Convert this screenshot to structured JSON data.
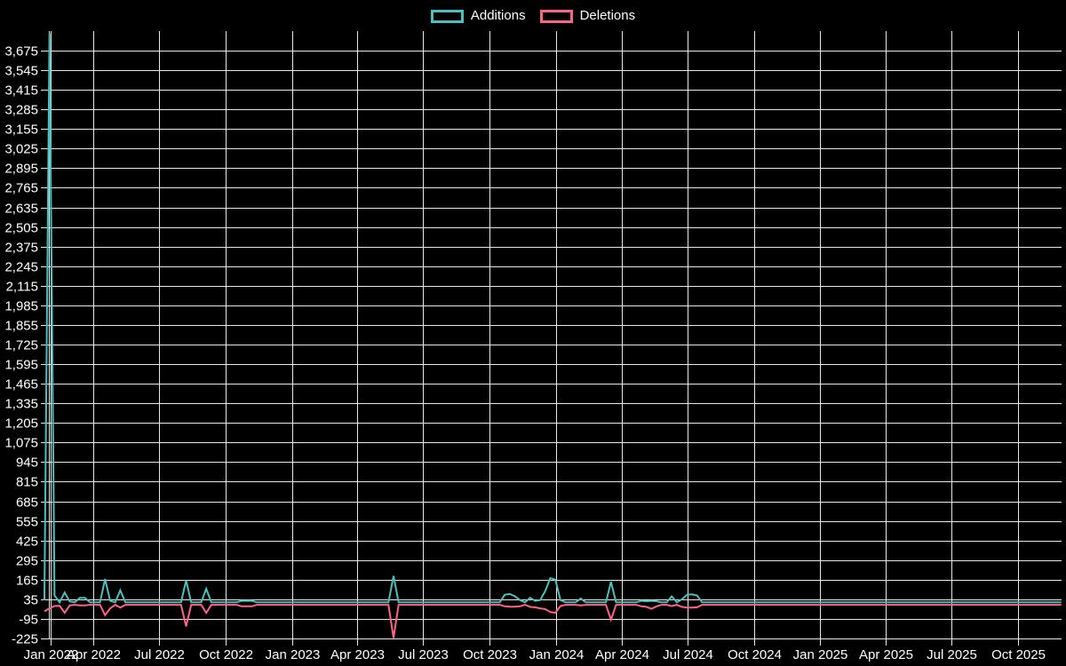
{
  "page": {
    "background_color": "#000000",
    "text_color": "#ffffff",
    "grid_color": "#e8e8e8"
  },
  "legend": {
    "position": "top-center",
    "items": [
      {
        "label": "Additions",
        "color": "#4bc0c0"
      },
      {
        "label": "Deletions",
        "color": "#ff6384"
      }
    ]
  },
  "chart_data": {
    "type": "line",
    "title": "",
    "xlabel": "",
    "ylabel": "",
    "legend_position": "top",
    "grid": true,
    "series": [
      {
        "name": "Additions",
        "color": "#4bc0c0"
      },
      {
        "name": "Deletions",
        "color": "#ff6384"
      }
    ],
    "y_axis": {
      "min": -225,
      "max": 3805,
      "tick_step": 130,
      "tick_labels": [
        "3,675",
        "3,545",
        "3,415",
        "3,285",
        "3,155",
        "3,025",
        "2,895",
        "2,765",
        "2,635",
        "2,505",
        "2,375",
        "2,245",
        "2,115",
        "1,985",
        "1,855",
        "1,725",
        "1,595",
        "1,465",
        "1,335",
        "1,205",
        "1,075",
        "945",
        "815",
        "685",
        "555",
        "425",
        "295",
        "165",
        "35",
        "-95",
        "-225"
      ]
    },
    "x_axis": {
      "interval": "weekly",
      "start_date": "2022-01-23",
      "weeks_total": 202,
      "ticks": [
        {
          "label": "Jan 2022",
          "date": "2022-01-01"
        },
        {
          "label": "Apr 2022",
          "date": "2022-04-01"
        },
        {
          "label": "Jul 2022",
          "date": "2022-07-01"
        },
        {
          "label": "Oct 2022",
          "date": "2022-10-01"
        },
        {
          "label": "Jan 2023",
          "date": "2023-01-01"
        },
        {
          "label": "Apr 2023",
          "date": "2023-04-01"
        },
        {
          "label": "Jul 2023",
          "date": "2023-07-01"
        },
        {
          "label": "Oct 2023",
          "date": "2023-10-01"
        },
        {
          "label": "Jan 2024",
          "date": "2024-01-01"
        },
        {
          "label": "Apr 2024",
          "date": "2024-04-01"
        },
        {
          "label": "Jul 2024",
          "date": "2024-07-01"
        },
        {
          "label": "Oct 2024",
          "date": "2024-10-01"
        },
        {
          "label": "Jan 2025",
          "date": "2025-01-01"
        },
        {
          "label": "Apr 2025",
          "date": "2025-04-01"
        },
        {
          "label": "Jul 2025",
          "date": "2025-07-01"
        },
        {
          "label": "Oct 2025",
          "date": "2025-10-01"
        }
      ]
    },
    "baseline": {
      "additions": 15,
      "deletions": -2
    },
    "feature_weeks": {
      "0": [
        30,
        -45
      ],
      "1": [
        3787,
        -25
      ],
      "2": [
        60,
        -10
      ],
      "3": [
        15,
        -8
      ],
      "4": [
        80,
        -55
      ],
      "5": [
        20,
        -5
      ],
      "7": [
        45,
        -5
      ],
      "8": [
        45,
        -5
      ],
      "12": [
        170,
        -70
      ],
      "13": [
        25,
        -25
      ],
      "15": [
        95,
        -20
      ],
      "28": [
        160,
        -145
      ],
      "32": [
        105,
        -55
      ],
      "39": [
        25,
        -12
      ],
      "40": [
        25,
        -12
      ],
      "41": [
        25,
        -12
      ],
      "69": [
        190,
        -222
      ],
      "91": [
        65,
        -12
      ],
      "92": [
        70,
        -14
      ],
      "93": [
        55,
        -14
      ],
      "94": [
        30,
        -12
      ],
      "96": [
        45,
        -15
      ],
      "97": [
        25,
        -18
      ],
      "98": [
        30,
        -25
      ],
      "99": [
        90,
        -30
      ],
      "100": [
        175,
        -50
      ],
      "101": [
        165,
        -55
      ],
      "102": [
        30,
        -10
      ],
      "106": [
        40,
        -5
      ],
      "112": [
        150,
        -100
      ],
      "118": [
        25,
        -12
      ],
      "119": [
        22,
        -15
      ],
      "120": [
        25,
        -28
      ],
      "121": [
        22,
        -12
      ],
      "124": [
        55,
        -10
      ],
      "126": [
        35,
        -15
      ],
      "127": [
        65,
        -20
      ],
      "128": [
        68,
        -20
      ],
      "129": [
        60,
        -18
      ]
    }
  }
}
